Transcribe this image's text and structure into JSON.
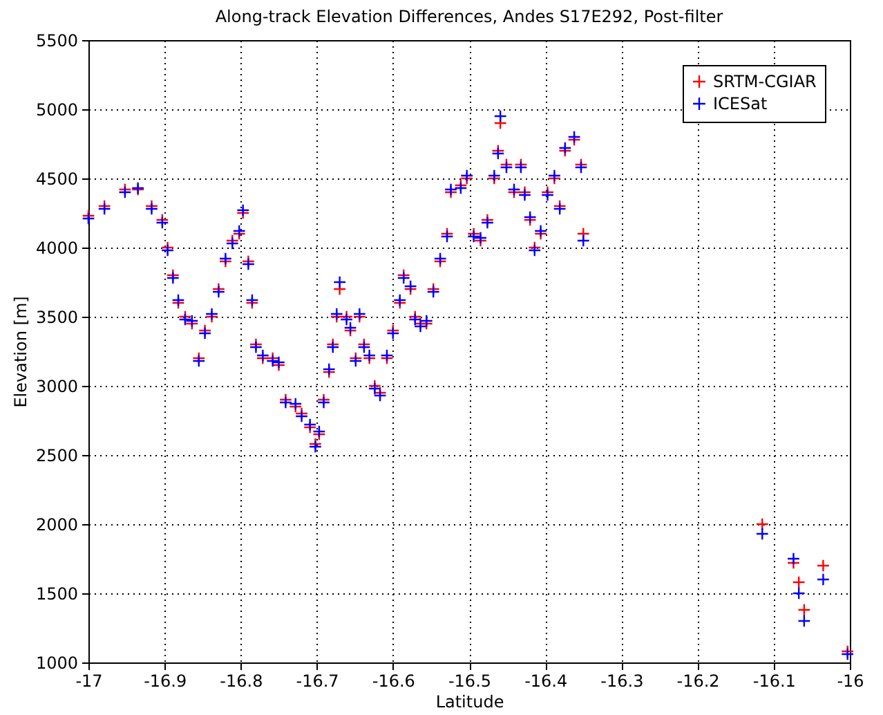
{
  "chart_data": {
    "type": "scatter",
    "title": "Along-track Elevation Differences, Andes S17E292, Post-filter",
    "xlabel": "Latitude",
    "ylabel": "Elevation [m]",
    "x": [
      -17.0,
      -16.979,
      -16.952,
      -16.935,
      -16.917,
      -16.903,
      -16.896,
      -16.889,
      -16.882,
      -16.873,
      -16.864,
      -16.855,
      -16.847,
      -16.838,
      -16.829,
      -16.82,
      -16.811,
      -16.802,
      -16.797,
      -16.79,
      -16.785,
      -16.78,
      -16.771,
      -16.758,
      -16.75,
      -16.741,
      -16.728,
      -16.72,
      -16.709,
      -16.702,
      -16.697,
      -16.691,
      -16.684,
      -16.679,
      -16.674,
      -16.67,
      -16.661,
      -16.656,
      -16.649,
      -16.644,
      -16.638,
      -16.631,
      -16.624,
      -16.617,
      -16.608,
      -16.6,
      -16.591,
      -16.586,
      -16.577,
      -16.571,
      -16.564,
      -16.556,
      -16.547,
      -16.538,
      -16.529,
      -16.524,
      -16.511,
      -16.503,
      -16.494,
      -16.485,
      -16.476,
      -16.467,
      -16.462,
      -16.459,
      -16.451,
      -16.441,
      -16.432,
      -16.427,
      -16.42,
      -16.414,
      -16.406,
      -16.397,
      -16.388,
      -16.381,
      -16.374,
      -16.362,
      -16.353,
      -16.35,
      -16.115,
      -16.074,
      -16.067,
      -16.06,
      -16.035,
      -16.003
    ],
    "series": [
      {
        "name": "SRTM-CGIAR",
        "color": "#ff0000",
        "values": [
          4230,
          4300,
          4420,
          4420,
          4300,
          4200,
          4000,
          3800,
          3600,
          3500,
          3450,
          3200,
          3400,
          3500,
          3700,
          3900,
          4050,
          4100,
          4250,
          3900,
          3600,
          3300,
          3200,
          3200,
          3150,
          2900,
          2850,
          2800,
          2700,
          2580,
          2650,
          2900,
          3100,
          3300,
          3500,
          3700,
          3500,
          3400,
          3200,
          3500,
          3300,
          3200,
          3000,
          2950,
          3200,
          3400,
          3600,
          3800,
          3700,
          3500,
          3450,
          3450,
          3700,
          3900,
          4100,
          4400,
          4450,
          4500,
          4100,
          4050,
          4200,
          4500,
          4700,
          4900,
          4600,
          4400,
          4600,
          4400,
          4200,
          4000,
          4100,
          4400,
          4500,
          4300,
          4700,
          4780,
          4600,
          4100,
          2000,
          1720,
          1580,
          1380,
          1700,
          1080
        ]
      },
      {
        "name": "ICESat",
        "color": "#0000ff",
        "values": [
          4210,
          4280,
          4400,
          4430,
          4280,
          4180,
          3980,
          3780,
          3620,
          3480,
          3470,
          3180,
          3380,
          3520,
          3680,
          3920,
          4030,
          4120,
          4270,
          3880,
          3620,
          3280,
          3220,
          3180,
          3170,
          2880,
          2870,
          2780,
          2720,
          2560,
          2670,
          2880,
          3120,
          3280,
          3520,
          3750,
          3480,
          3420,
          3180,
          3520,
          3280,
          3220,
          2980,
          2930,
          3220,
          3380,
          3620,
          3780,
          3720,
          3480,
          3430,
          3470,
          3680,
          3920,
          4080,
          4420,
          4430,
          4520,
          4080,
          4070,
          4180,
          4520,
          4680,
          4950,
          4580,
          4420,
          4580,
          4380,
          4220,
          3980,
          4120,
          4380,
          4520,
          4280,
          4720,
          4800,
          4580,
          4050,
          1930,
          1750,
          1500,
          1300,
          1600,
          1060
        ]
      }
    ],
    "xlim": [
      -17,
      -16
    ],
    "xticks": [
      -17,
      -16.9,
      -16.8,
      -16.7,
      -16.6,
      -16.5,
      -16.4,
      -16.3,
      -16.2,
      -16.1,
      -16
    ],
    "ylim": [
      1000,
      5500
    ],
    "yticks": [
      1000,
      1500,
      2000,
      2500,
      3000,
      3500,
      4000,
      4500,
      5000,
      5500
    ],
    "grid": true,
    "legend": "top right",
    "marker": "cross"
  }
}
